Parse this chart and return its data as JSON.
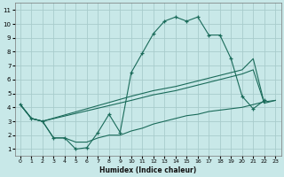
{
  "xlabel": "Humidex (Indice chaleur)",
  "bg_color": "#c8e8e8",
  "grid_color": "#a8cccc",
  "line_color": "#1a6b5a",
  "xlim": [
    -0.5,
    23.5
  ],
  "ylim": [
    0.5,
    11.5
  ],
  "xticks": [
    0,
    1,
    2,
    3,
    4,
    5,
    6,
    7,
    8,
    9,
    10,
    11,
    12,
    13,
    14,
    15,
    16,
    17,
    18,
    19,
    20,
    21,
    22,
    23
  ],
  "yticks": [
    1,
    2,
    3,
    4,
    5,
    6,
    7,
    8,
    9,
    10,
    11
  ],
  "series": [
    {
      "x": [
        0,
        1,
        2,
        3,
        4,
        5,
        6,
        7,
        8,
        9,
        10,
        11,
        12,
        13,
        14,
        15,
        16,
        17,
        18,
        19,
        20,
        21,
        22
      ],
      "y": [
        4.2,
        3.2,
        3.0,
        1.8,
        1.8,
        1.0,
        1.1,
        2.2,
        3.5,
        2.2,
        6.5,
        7.9,
        9.3,
        10.2,
        10.5,
        10.2,
        10.5,
        9.2,
        9.2,
        7.5,
        4.8,
        3.9,
        4.5
      ],
      "marker": "+"
    },
    {
      "x": [
        0,
        1,
        2,
        10,
        12,
        14,
        17,
        19,
        20,
        21,
        22
      ],
      "y": [
        4.2,
        3.2,
        3.0,
        4.8,
        5.2,
        5.5,
        6.1,
        6.5,
        6.7,
        7.5,
        4.3
      ],
      "marker": null
    },
    {
      "x": [
        0,
        1,
        2,
        10,
        12,
        14,
        17,
        19,
        20,
        21,
        22,
        23
      ],
      "y": [
        4.2,
        3.2,
        3.0,
        4.5,
        4.9,
        5.2,
        5.8,
        6.2,
        6.4,
        6.7,
        4.3,
        4.5
      ],
      "marker": null
    },
    {
      "x": [
        0,
        1,
        2,
        3,
        4,
        5,
        6,
        7,
        8,
        9,
        10,
        11,
        12,
        13,
        14,
        15,
        16,
        17,
        18,
        19,
        20,
        21,
        22,
        23
      ],
      "y": [
        4.2,
        3.2,
        3.0,
        1.8,
        1.8,
        1.5,
        1.5,
        1.8,
        2.0,
        2.0,
        2.3,
        2.5,
        2.8,
        3.0,
        3.2,
        3.4,
        3.5,
        3.7,
        3.8,
        3.9,
        4.0,
        4.2,
        4.4,
        4.5
      ],
      "marker": null
    }
  ]
}
